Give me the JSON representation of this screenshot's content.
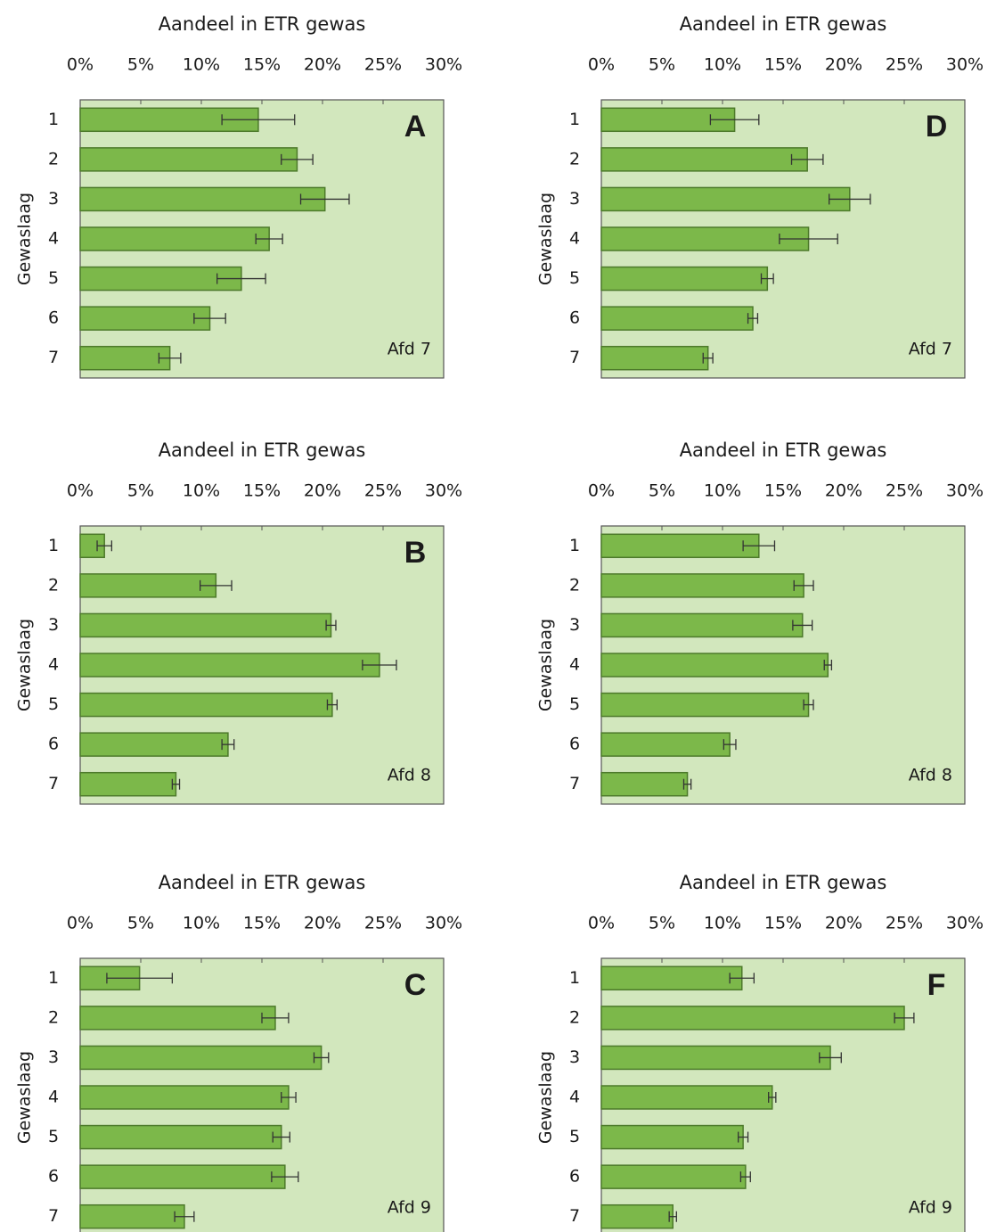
{
  "chart_data": [
    {
      "type": "bar",
      "orientation": "horizontal",
      "title": "Aandeel in ETR gewas",
      "ylabel": "Gewaslaag",
      "panel_label": "A",
      "annotation": "Afd 7",
      "categories": [
        "1",
        "2",
        "3",
        "4",
        "5",
        "6",
        "7"
      ],
      "values": [
        14.7,
        17.9,
        20.2,
        15.6,
        13.3,
        10.7,
        7.4
      ],
      "errors": [
        3.0,
        1.3,
        2.0,
        1.1,
        2.0,
        1.3,
        0.9
      ],
      "color": "#7cb84a",
      "xlim": [
        0,
        30
      ],
      "xticks": [
        {
          "value": 0,
          "label": "0%"
        },
        {
          "value": 5,
          "label": "5%"
        },
        {
          "value": 10,
          "label": "10%"
        },
        {
          "value": 15,
          "label": "15%"
        },
        {
          "value": 20,
          "label": "20%"
        },
        {
          "value": 25,
          "label": "25%"
        },
        {
          "value": 30,
          "label": "30%"
        }
      ]
    },
    {
      "type": "bar",
      "orientation": "horizontal",
      "title": "Aandeel in ETR gewas",
      "ylabel": "Gewaslaag",
      "panel_label": "D",
      "annotation": "Afd 7",
      "categories": [
        "1",
        "2",
        "3",
        "4",
        "5",
        "6",
        "7"
      ],
      "values": [
        11.0,
        17.0,
        20.5,
        17.1,
        13.7,
        12.5,
        8.8
      ],
      "errors": [
        2.0,
        1.3,
        1.7,
        2.4,
        0.5,
        0.4,
        0.4
      ],
      "color": "#7cb84a",
      "xlim": [
        0,
        30
      ],
      "xticks": [
        {
          "value": 0,
          "label": "0%"
        },
        {
          "value": 5,
          "label": "5%"
        },
        {
          "value": 10,
          "label": "10%"
        },
        {
          "value": 15,
          "label": "15%"
        },
        {
          "value": 20,
          "label": "20%"
        },
        {
          "value": 25,
          "label": "25%"
        },
        {
          "value": 30,
          "label": "30%"
        }
      ]
    },
    {
      "type": "bar",
      "orientation": "horizontal",
      "title": "Aandeel in ETR gewas",
      "ylabel": "Gewaslaag",
      "panel_label": "B",
      "annotation": "Afd 8",
      "categories": [
        "1",
        "2",
        "3",
        "4",
        "5",
        "6",
        "7"
      ],
      "values": [
        2.0,
        11.2,
        20.7,
        24.7,
        20.8,
        12.2,
        7.9
      ],
      "errors": [
        0.6,
        1.3,
        0.4,
        1.4,
        0.4,
        0.5,
        0.3
      ],
      "color": "#7cb84a",
      "xlim": [
        0,
        30
      ],
      "xticks": [
        {
          "value": 0,
          "label": "0%"
        },
        {
          "value": 5,
          "label": "5%"
        },
        {
          "value": 10,
          "label": "10%"
        },
        {
          "value": 15,
          "label": "15%"
        },
        {
          "value": 20,
          "label": "20%"
        },
        {
          "value": 25,
          "label": "25%"
        },
        {
          "value": 30,
          "label": "30%"
        }
      ]
    },
    {
      "type": "bar",
      "orientation": "horizontal",
      "title": "Aandeel in ETR gewas",
      "ylabel": "Gewaslaag",
      "annotation": "Afd 8",
      "categories": [
        "1",
        "2",
        "3",
        "4",
        "5",
        "6",
        "7"
      ],
      "values": [
        13.0,
        16.7,
        16.6,
        18.7,
        17.1,
        10.6,
        7.1
      ],
      "errors": [
        1.3,
        0.8,
        0.8,
        0.3,
        0.4,
        0.5,
        0.3
      ],
      "color": "#7cb84a",
      "xlim": [
        0,
        30
      ],
      "xticks": [
        {
          "value": 0,
          "label": "0%"
        },
        {
          "value": 5,
          "label": "5%"
        },
        {
          "value": 10,
          "label": "10%"
        },
        {
          "value": 15,
          "label": "15%"
        },
        {
          "value": 20,
          "label": "20%"
        },
        {
          "value": 25,
          "label": "25%"
        },
        {
          "value": 30,
          "label": "30%"
        }
      ]
    },
    {
      "type": "bar",
      "orientation": "horizontal",
      "title": "Aandeel in ETR gewas",
      "ylabel": "Gewaslaag",
      "panel_label": "C",
      "annotation": "Afd 9",
      "categories": [
        "1",
        "2",
        "3",
        "4",
        "5",
        "6",
        "7"
      ],
      "values": [
        4.9,
        16.1,
        19.9,
        17.2,
        16.6,
        16.9,
        8.6
      ],
      "errors": [
        2.7,
        1.1,
        0.6,
        0.6,
        0.7,
        1.1,
        0.8
      ],
      "color": "#7cb84a",
      "xlim": [
        0,
        30
      ],
      "xticks": [
        {
          "value": 0,
          "label": "0%"
        },
        {
          "value": 5,
          "label": "5%"
        },
        {
          "value": 10,
          "label": "10%"
        },
        {
          "value": 15,
          "label": "15%"
        },
        {
          "value": 20,
          "label": "20%"
        },
        {
          "value": 25,
          "label": "25%"
        },
        {
          "value": 30,
          "label": "30%"
        }
      ]
    },
    {
      "type": "bar",
      "orientation": "horizontal",
      "title": "Aandeel in ETR gewas",
      "ylabel": "Gewaslaag",
      "panel_label": "F",
      "annotation": "Afd 9",
      "categories": [
        "1",
        "2",
        "3",
        "4",
        "5",
        "6",
        "7"
      ],
      "values": [
        11.6,
        25.0,
        18.9,
        14.1,
        11.7,
        11.9,
        5.9
      ],
      "errors": [
        1.0,
        0.8,
        0.9,
        0.3,
        0.4,
        0.4,
        0.3
      ],
      "color": "#7cb84a",
      "xlim": [
        0,
        30
      ],
      "xticks": [
        {
          "value": 0,
          "label": "0%"
        },
        {
          "value": 5,
          "label": "5%"
        },
        {
          "value": 10,
          "label": "10%"
        },
        {
          "value": 15,
          "label": "15%"
        },
        {
          "value": 20,
          "label": "20%"
        },
        {
          "value": 25,
          "label": "25%"
        },
        {
          "value": 30,
          "label": "30%"
        }
      ]
    }
  ]
}
